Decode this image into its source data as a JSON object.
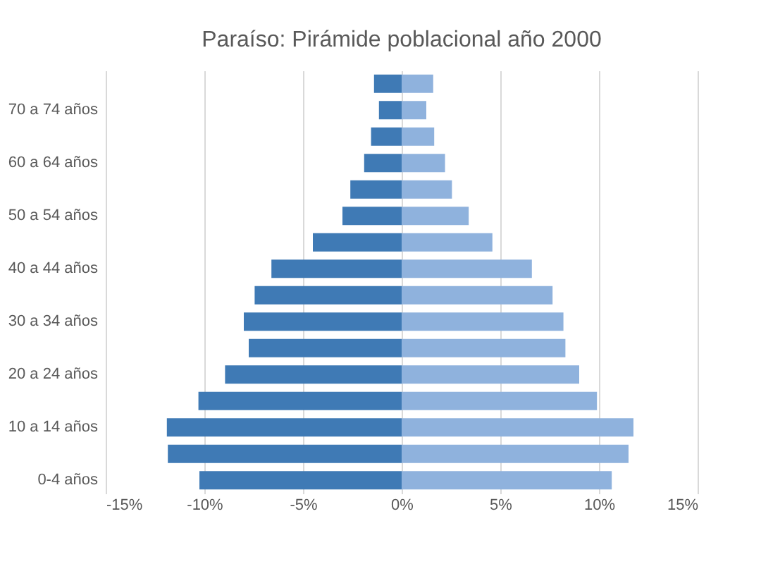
{
  "chart_data": {
    "type": "bar",
    "orientation": "horizontal",
    "stacked": true,
    "title": "Paraíso: Pirámide poblacional año 2000",
    "categories": [
      null,
      "70 a 74 años",
      null,
      "60 a 64 años",
      null,
      "50 a 54 años",
      null,
      "40 a 44 años",
      null,
      "30 a 34 años",
      null,
      "20 a 24 años",
      null,
      "10 a 14 años",
      null,
      "0-4 años"
    ],
    "series": [
      {
        "color": "#3f7ab5",
        "values": [
          -1.4,
          -1.15,
          -1.55,
          -1.9,
          -2.6,
          -3.0,
          -4.5,
          -6.6,
          -7.45,
          -8.0,
          -7.75,
          -8.95,
          -10.3,
          -11.9,
          -11.85,
          -10.25
        ]
      },
      {
        "color": "#8fb2dd",
        "values": [
          1.6,
          1.25,
          1.65,
          2.2,
          2.55,
          3.4,
          4.6,
          6.6,
          7.65,
          8.2,
          8.3,
          9.0,
          9.9,
          11.75,
          11.5,
          10.65
        ]
      }
    ],
    "xlim": [
      -15,
      15
    ],
    "xticks": [
      {
        "value": -15,
        "label": "-15%"
      },
      {
        "value": -10,
        "label": "-10%"
      },
      {
        "value": -5,
        "label": "-5%"
      },
      {
        "value": 0,
        "label": "0%"
      },
      {
        "value": 5,
        "label": "5%"
      },
      {
        "value": 10,
        "label": "10%"
      },
      {
        "value": 15,
        "label": "15%"
      }
    ],
    "grid": "x",
    "legend": false
  }
}
